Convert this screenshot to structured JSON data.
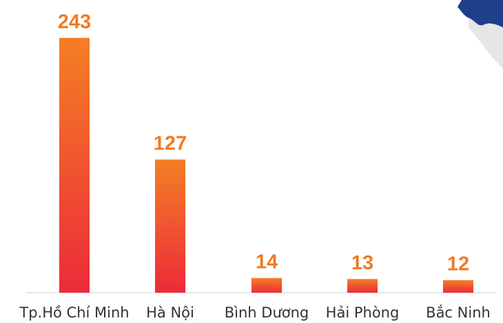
{
  "chart_data": {
    "type": "bar",
    "categories": [
      "Tp.Hồ Chí Minh",
      "Hà Nội",
      "Bình Dương",
      "Hải Phòng",
      "Bắc Ninh"
    ],
    "values": [
      243,
      127,
      14,
      13,
      12
    ],
    "value_labels": [
      "243",
      "127",
      "14",
      "13",
      "12"
    ],
    "title": "",
    "xlabel": "",
    "ylabel": "",
    "ylim": [
      0,
      243
    ],
    "grid": false,
    "legend": "none",
    "colors": {
      "bar_top": "#f47f24",
      "bar_bottom": "#ec2b3a",
      "value_label": "#f07a24",
      "category_label": "#333333",
      "baseline": "#cccccc"
    }
  },
  "decoration": {
    "icon": "map-fragment-icon",
    "colors": [
      "#1e3f8a",
      "#e6e6e6"
    ]
  }
}
